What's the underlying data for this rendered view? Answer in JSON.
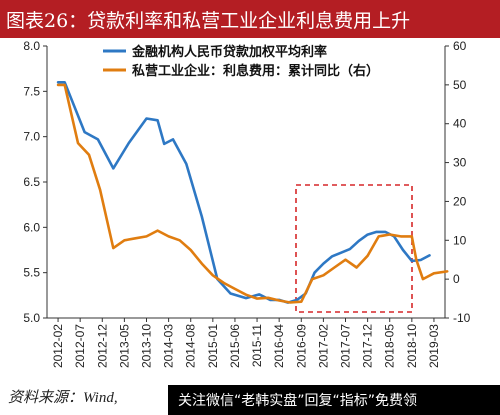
{
  "title": "图表26：贷款利率和私营工业企业利息费用上升",
  "source": "资料来源：Wind,",
  "watermark": "关注微信“老韩实盘”回复“指标”免费领",
  "chart_data": {
    "type": "line",
    "x_categories": [
      "2012-02",
      "2012-07",
      "2012-12",
      "2013-05",
      "2013-10",
      "2014-03",
      "2014-08",
      "2015-01",
      "2015-06",
      "2015-11",
      "2016-04",
      "2016-09",
      "2017-02",
      "2017-07",
      "2017-12",
      "2018-05",
      "2018-10",
      "2019-03"
    ],
    "left_axis": {
      "ylim": [
        5.0,
        8.0
      ],
      "ticks": [
        "5.0",
        "5.5",
        "6.0",
        "6.5",
        "7.0",
        "7.5",
        "8.0"
      ]
    },
    "right_axis": {
      "ylim": [
        -10,
        60
      ],
      "ticks": [
        "-10",
        "0",
        "10",
        "20",
        "30",
        "40",
        "50",
        "60"
      ]
    },
    "series": [
      {
        "name": "金融机构人民币贷款加权平均利率",
        "axis": "left",
        "color": "#2e78c4",
        "x": [
          0,
          0.3,
          1.2,
          1.8,
          2.5,
          3.2,
          4.0,
          4.5,
          4.8,
          5.2,
          5.8,
          6.5,
          7.2,
          7.8,
          8.5,
          9.1,
          9.6,
          10.0,
          10.4,
          10.8,
          11.2,
          11.6,
          12.0,
          12.4,
          12.8,
          13.2,
          13.6,
          14.0,
          14.4,
          14.8,
          15.2,
          15.6,
          16.0,
          16.4,
          16.8
        ],
        "y": [
          7.6,
          7.6,
          7.05,
          6.97,
          6.65,
          6.93,
          7.2,
          7.18,
          6.92,
          6.97,
          6.7,
          6.12,
          5.43,
          5.27,
          5.22,
          5.26,
          5.2,
          5.2,
          5.17,
          5.2,
          5.27,
          5.5,
          5.6,
          5.68,
          5.72,
          5.76,
          5.85,
          5.92,
          5.95,
          5.95,
          5.9,
          5.75,
          5.63,
          5.64,
          5.69
        ]
      },
      {
        "name": "私营工业企业：利息费用：累计同比（右）",
        "axis": "right",
        "color": "#e07d10",
        "x": [
          0,
          0.3,
          0.9,
          1.4,
          1.9,
          2.5,
          3.0,
          3.5,
          4.0,
          4.5,
          5.0,
          5.5,
          6.0,
          6.5,
          7.0,
          7.5,
          8.0,
          8.5,
          9.0,
          9.5,
          10.0,
          10.5,
          11.0,
          11.5,
          12.0,
          12.5,
          13.0,
          13.5,
          14.0,
          14.5,
          15.0,
          15.5,
          16.0,
          16.2,
          16.5,
          17.0,
          17.6
        ],
        "y": [
          50,
          50,
          35,
          32,
          23,
          8,
          10,
          10.5,
          11,
          12.5,
          11,
          10,
          7.5,
          4,
          1,
          -1,
          -2.5,
          -4,
          -5,
          -4.8,
          -5.5,
          -6,
          -5.8,
          0,
          1,
          3,
          5,
          3,
          6,
          11,
          11.5,
          11,
          11,
          5,
          0,
          1.5,
          2
        ]
      }
    ]
  }
}
